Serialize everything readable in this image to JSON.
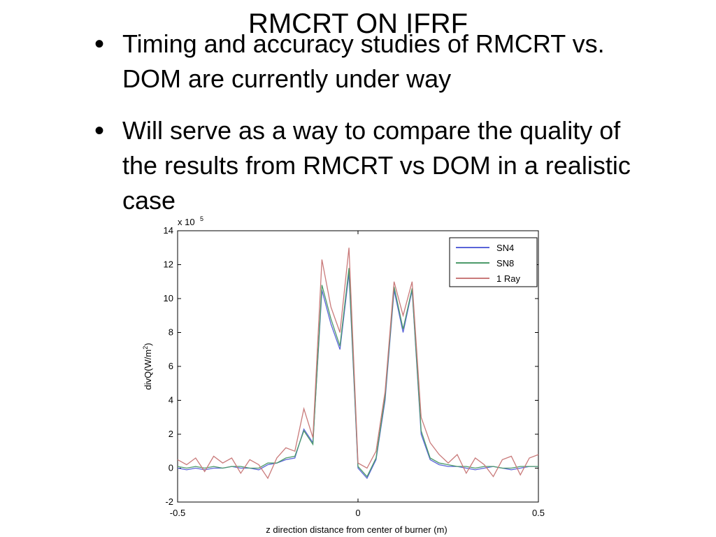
{
  "slide": {
    "title": "RMCRT ON IFRF",
    "bullets": [
      "Timing and accuracy studies of RMCRT vs. DOM are currently under way",
      "Will serve as a way to compare the quality of the results from RMCRT vs DOM in a realistic case"
    ]
  },
  "chart_data": {
    "type": "line",
    "xlabel": "z direction distance from center of burner (m)",
    "ylabel": "divQ(W/m",
    "ylabel_sup": "2",
    "ylabel_end": ")",
    "multiplier": "x 10",
    "multiplier_exp": "5",
    "x": [
      -0.5,
      -0.475,
      -0.45,
      -0.425,
      -0.4,
      -0.375,
      -0.35,
      -0.325,
      -0.3,
      -0.275,
      -0.25,
      -0.225,
      -0.2,
      -0.175,
      -0.15,
      -0.125,
      -0.1,
      -0.075,
      -0.05,
      -0.025,
      0,
      0.025,
      0.05,
      0.075,
      0.1,
      0.125,
      0.15,
      0.175,
      0.2,
      0.225,
      0.25,
      0.275,
      0.3,
      0.325,
      0.35,
      0.375,
      0.4,
      0.425,
      0.45,
      0.475,
      0.5
    ],
    "series": [
      {
        "name": "SN4",
        "color": "#5a64d8",
        "values": [
          0,
          -0.1,
          0,
          -0.1,
          0,
          0,
          0.1,
          0,
          0,
          -0.1,
          0.2,
          0.3,
          0.5,
          0.6,
          2.3,
          1.5,
          10.5,
          8.5,
          7,
          11.5,
          0,
          -0.6,
          0.5,
          4,
          10.5,
          8,
          10.5,
          2,
          0.5,
          0.2,
          0.1,
          0.1,
          0,
          -0.1,
          0,
          0.1,
          0,
          -0.1,
          0,
          0.1,
          0.1
        ]
      },
      {
        "name": "SN8",
        "color": "#4c9a6a",
        "values": [
          0.1,
          0,
          0.1,
          0,
          0.1,
          0,
          0.1,
          0.1,
          0,
          0,
          0.3,
          0.3,
          0.6,
          0.7,
          2.2,
          1.4,
          10.8,
          8.8,
          7.2,
          11.8,
          0.1,
          -0.5,
          0.6,
          4.2,
          10.7,
          8.2,
          10.6,
          2.2,
          0.6,
          0.3,
          0.2,
          0.1,
          0.1,
          0,
          0.1,
          0.1,
          0,
          0,
          0.1,
          0.1,
          0.1
        ]
      },
      {
        "name": "1 Ray",
        "color": "#c97a7a",
        "values": [
          0.5,
          0.2,
          0.6,
          -0.2,
          0.7,
          0.3,
          0.6,
          -0.3,
          0.5,
          0.2,
          -0.6,
          0.6,
          1.2,
          1,
          3.5,
          1.8,
          12.3,
          9.5,
          8,
          13,
          0.3,
          0,
          1,
          4.5,
          11,
          9,
          11,
          3,
          1.5,
          0.8,
          0.3,
          0.8,
          -0.3,
          0.6,
          0.2,
          -0.5,
          0.5,
          0.7,
          -0.4,
          0.6,
          0.8
        ]
      }
    ],
    "xlim": [
      -0.5,
      0.5
    ],
    "ylim": [
      -2,
      14
    ],
    "xticks": [
      -0.5,
      0,
      0.5
    ],
    "yticks": [
      -2,
      0,
      2,
      4,
      6,
      8,
      10,
      12,
      14
    ],
    "legend": "upper-right"
  }
}
